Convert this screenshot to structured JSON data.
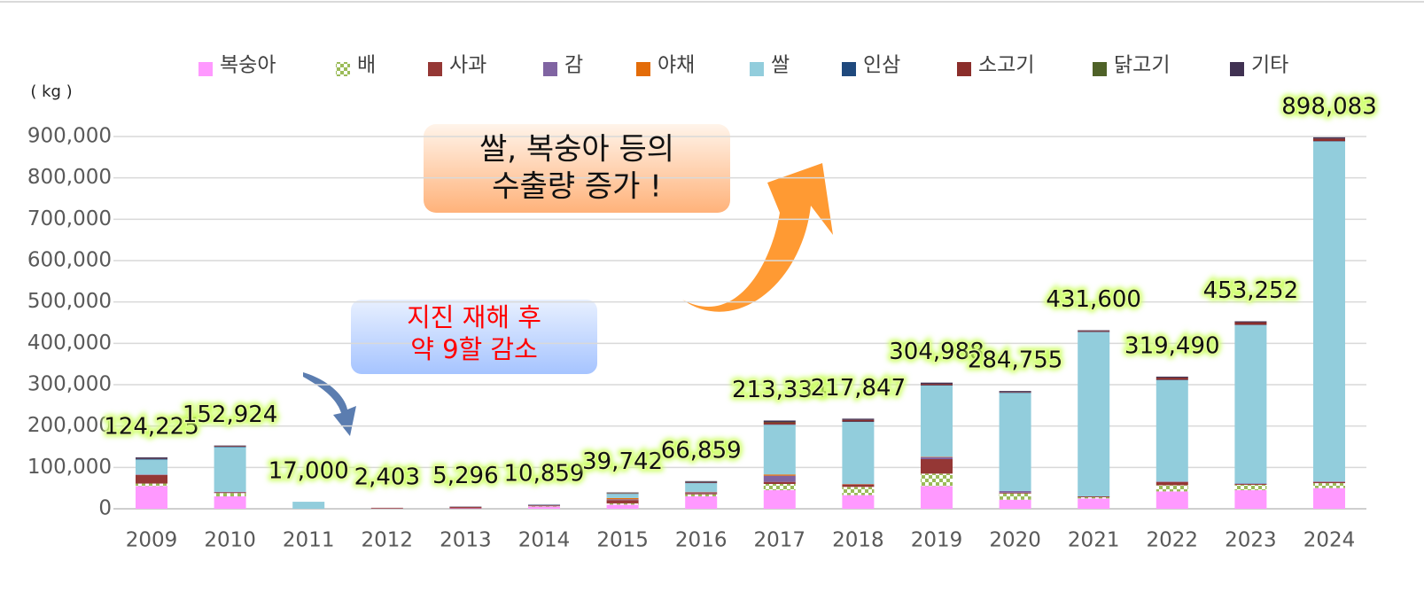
{
  "chart_data": {
    "type": "stacked_bar",
    "unit_label": "( kg )",
    "annotations": [
      {
        "lines": [
          "쌀, 복숭아 등의",
          "수출량 증가 !"
        ]
      },
      {
        "lines": [
          "지진 재해 후",
          "약 9할 감소"
        ]
      }
    ],
    "categories": [
      "2009",
      "2010",
      "2011",
      "2012",
      "2013",
      "2014",
      "2015",
      "2016",
      "2017",
      "2018",
      "2019",
      "2020",
      "2021",
      "2022",
      "2023",
      "2024"
    ],
    "series": [
      {
        "name": "복숭아",
        "color": "#ff99ff",
        "values": [
          55000,
          30000,
          0,
          500,
          1000,
          5000,
          10000,
          30000,
          45000,
          33000,
          55000,
          22000,
          25000,
          42000,
          45000,
          50000
        ]
      },
      {
        "name": "배",
        "color": "#9bbb59",
        "pattern": "checker",
        "values": [
          6000,
          8000,
          0,
          0,
          0,
          1000,
          3000,
          5000,
          15000,
          20000,
          30000,
          15000,
          3000,
          15000,
          13000,
          12000
        ]
      },
      {
        "name": "사과",
        "color": "#953735",
        "values": [
          21000,
          2000,
          0,
          1000,
          2000,
          2000,
          8000,
          3000,
          5000,
          5000,
          35000,
          2000,
          2000,
          8000,
          2000,
          3000
        ]
      },
      {
        "name": "감",
        "color": "#8064a2",
        "values": [
          1000,
          1000,
          0,
          0,
          0,
          1000,
          2000,
          2000,
          15000,
          1000,
          5000,
          4000,
          0,
          1000,
          1000,
          1000
        ]
      },
      {
        "name": "야채",
        "color": "#e36c09",
        "values": [
          0,
          0,
          0,
          0,
          0,
          0,
          3000,
          1000,
          3000,
          1000,
          1000,
          0,
          0,
          0,
          0,
          0
        ]
      },
      {
        "name": "쌀",
        "color": "#92cddc",
        "values": [
          36000,
          108000,
          17000,
          0,
          0,
          1000,
          10000,
          21000,
          120000,
          150000,
          172000,
          237000,
          397000,
          245000,
          383000,
          822000
        ]
      },
      {
        "name": "인삼",
        "color": "#1f497d",
        "values": [
          2000,
          1000,
          0,
          0,
          0,
          0,
          1000,
          1000,
          1000,
          1000,
          1000,
          1000,
          1000,
          1000,
          1000,
          1000
        ]
      },
      {
        "name": "소고기",
        "color": "#8b2e2b",
        "values": [
          1000,
          1500,
          0,
          903,
          1500,
          0,
          1000,
          1500,
          5000,
          4000,
          3000,
          1000,
          2000,
          5000,
          6000,
          6000
        ]
      },
      {
        "name": "닭고기",
        "color": "#4f6228",
        "values": [
          0,
          0,
          0,
          0,
          0,
          0,
          1000,
          500,
          1000,
          0,
          0,
          0,
          0,
          0,
          0,
          0
        ]
      },
      {
        "name": "기타",
        "color": "#403152",
        "values": [
          2225,
          1424,
          0,
          0,
          796,
          859,
          742,
          1859,
          3334,
          2847,
          2988,
          2755,
          1600,
          2490,
          2252,
          3083
        ]
      }
    ],
    "totals": {
      "values": [
        124225,
        152924,
        17000,
        2403,
        5296,
        10859,
        39742,
        66859,
        213334,
        217847,
        304988,
        284755,
        431600,
        319490,
        453252,
        898083
      ],
      "value_labels": [
        "124,225",
        "152,924",
        "17,000",
        "2,403",
        "5,296",
        "10,859",
        "39,742",
        "66,859",
        "213,334",
        "217,847",
        "304,988",
        "284,755",
        "431,600",
        "319,490",
        "453,252",
        "898,083"
      ]
    },
    "ylim": [
      0,
      900000
    ],
    "yticks": [
      0,
      {
        "value": 100000,
        "label": "100,000"
      },
      {
        "value": 200000,
        "label": "200,000"
      },
      {
        "value": 300000,
        "label": "300,000"
      },
      {
        "value": 400000,
        "label": "400,000"
      },
      {
        "value": 500000,
        "label": "500,000"
      },
      {
        "value": 600000,
        "label": "600,000"
      },
      {
        "value": 700000,
        "label": "700,000"
      },
      {
        "value": 800000,
        "label": "800,000"
      },
      {
        "value": 900000,
        "label": "900,000"
      }
    ],
    "grid": true,
    "legend": "top"
  }
}
